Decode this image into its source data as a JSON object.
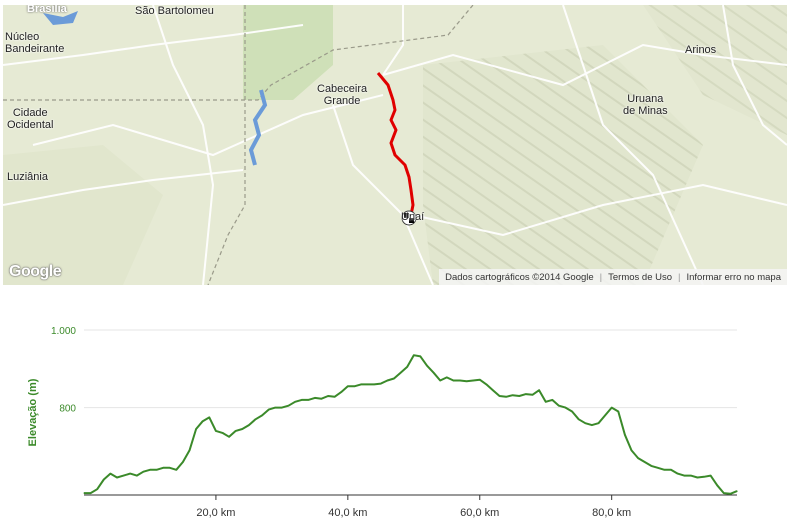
{
  "map": {
    "places": [
      {
        "id": "brasilia",
        "label": "Brasília"
      },
      {
        "id": "sao-bartolomeu",
        "label": "São Bartolomeu"
      },
      {
        "id": "nucleo-bandeirante",
        "label": "Núcleo\nBandeirante"
      },
      {
        "id": "arinos",
        "label": "Arinos"
      },
      {
        "id": "cabeceira-grande",
        "label": "Cabeceira\nGrande"
      },
      {
        "id": "uruana-de-minas",
        "label": "Uruana\nde Minas"
      },
      {
        "id": "cidade-ocidental",
        "label": "Cidade\nOcidental"
      },
      {
        "id": "luziania",
        "label": "Luziânia"
      },
      {
        "id": "unai",
        "label": "Unaí"
      }
    ],
    "logo": "Google",
    "attribution": {
      "data": "Dados cartográficos ©2014 Google",
      "terms": "Termos de Uso",
      "report": "Informar erro no mapa"
    },
    "route_color": "#e00000",
    "water_color": "#6b9bd8"
  },
  "chart_data": {
    "type": "area",
    "ylabel": "Elevação (m)",
    "xlim": [
      0,
      99
    ],
    "ylim": [
      575,
      1000
    ],
    "y_ticks": [
      {
        "value": 800,
        "label": "800"
      },
      {
        "value": 1000,
        "label": "1.000"
      }
    ],
    "x_ticks": [
      {
        "value": 20,
        "label": "20,0 km"
      },
      {
        "value": 40,
        "label": "40,0 km"
      },
      {
        "value": 60,
        "label": "60,0 km"
      },
      {
        "value": 80,
        "label": "80,0 km"
      }
    ],
    "line_color": "#3b8a2a",
    "series": [
      {
        "x": [
          0,
          1,
          2,
          3,
          4,
          5,
          6,
          7,
          8,
          9,
          10,
          11,
          12,
          13,
          14,
          15,
          16,
          17,
          18,
          19,
          20,
          21,
          22,
          23,
          24,
          25,
          26,
          27,
          28,
          29,
          30,
          31,
          32,
          33,
          34,
          35,
          36,
          37,
          38,
          39,
          40,
          41,
          42,
          43,
          44,
          45,
          46,
          47,
          48,
          49,
          50,
          51,
          52,
          53,
          54,
          55,
          56,
          57,
          58,
          59,
          60,
          61,
          62,
          63,
          64,
          65,
          66,
          67,
          68,
          69,
          70,
          71,
          72,
          73,
          74,
          75,
          76,
          77,
          78,
          79,
          80,
          81,
          82,
          83,
          84,
          85,
          86,
          87,
          88,
          89,
          90,
          91,
          92,
          93,
          94,
          95,
          96,
          97,
          98,
          99
        ],
        "y": [
          580,
          580,
          590,
          615,
          630,
          620,
          625,
          630,
          625,
          635,
          640,
          640,
          645,
          645,
          640,
          660,
          690,
          745,
          765,
          775,
          740,
          735,
          725,
          740,
          745,
          755,
          770,
          780,
          795,
          800,
          800,
          805,
          815,
          820,
          820,
          825,
          823,
          830,
          828,
          840,
          855,
          855,
          860,
          860,
          860,
          862,
          870,
          875,
          890,
          905,
          935,
          932,
          908,
          890,
          870,
          878,
          870,
          870,
          868,
          870,
          872,
          860,
          845,
          830,
          828,
          832,
          830,
          835,
          833,
          845,
          815,
          820,
          805,
          800,
          790,
          770,
          760,
          755,
          760,
          780,
          800,
          790,
          730,
          690,
          670,
          660,
          650,
          645,
          640,
          640,
          630,
          625,
          625,
          620,
          622,
          625,
          600,
          580,
          578,
          585
        ]
      }
    ]
  }
}
